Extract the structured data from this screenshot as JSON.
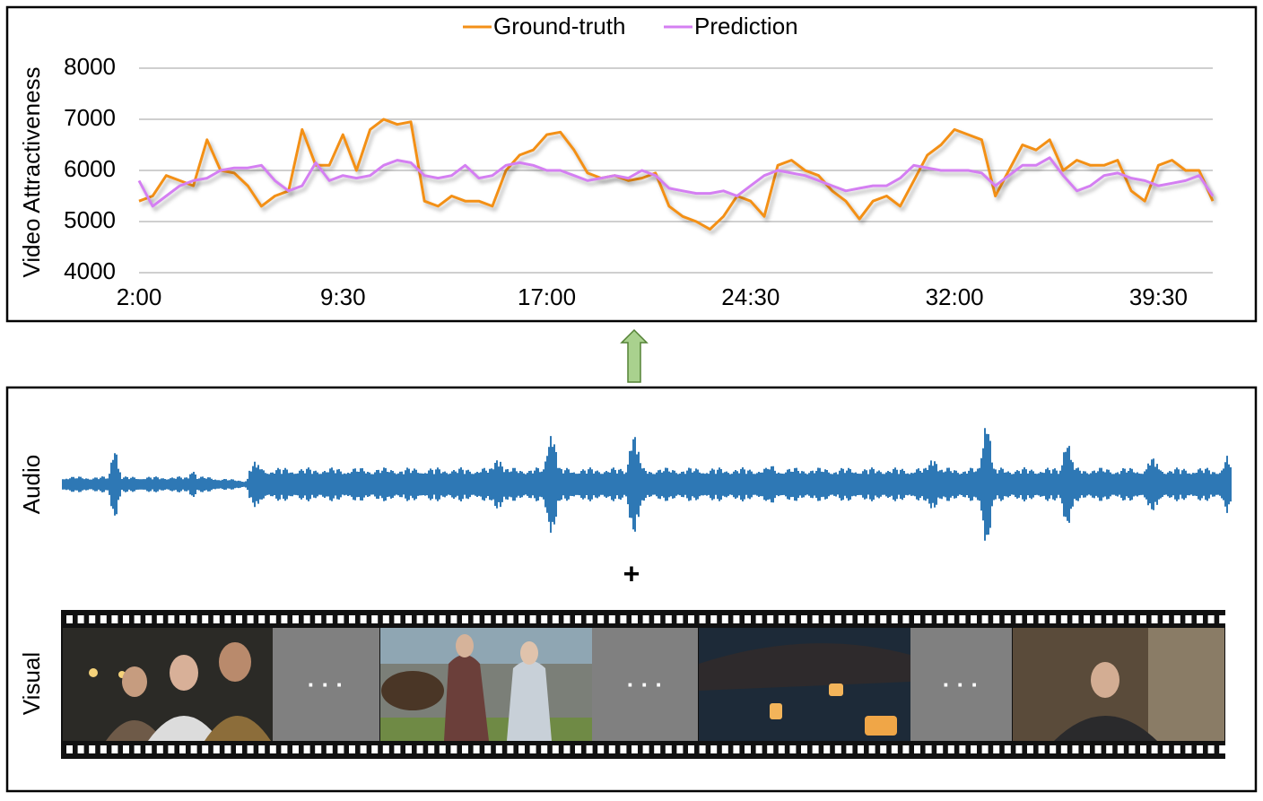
{
  "chart_data": {
    "type": "line",
    "y_label": "Video Attractiveness",
    "legend": "top",
    "grid": true,
    "x": [
      2,
      2.5,
      3,
      3.5,
      4,
      4.5,
      5,
      5.5,
      6,
      6.5,
      7,
      7.5,
      8,
      8.5,
      9,
      9.5,
      10,
      10.5,
      11,
      11.5,
      12,
      12.5,
      13,
      13.5,
      14,
      14.5,
      15,
      15.5,
      16,
      16.5,
      17,
      17.5,
      18,
      18.5,
      19,
      19.5,
      20,
      20.5,
      21,
      21.5,
      22,
      22.5,
      23,
      23.5,
      24,
      24.5,
      25,
      25.5,
      26,
      26.5,
      27,
      27.5,
      28,
      28.5,
      29,
      29.5,
      30,
      30.5,
      31,
      31.5,
      32,
      32.5,
      33,
      33.5,
      34,
      34.5,
      35,
      35.5,
      36,
      36.5,
      37,
      37.5,
      38,
      38.5,
      39,
      39.5,
      40,
      40.5,
      41,
      41.5
    ],
    "xlim": [
      2,
      41.5
    ],
    "xticks": [
      {
        "value": 2,
        "label": "2:00"
      },
      {
        "value": 9.5,
        "label": "9:30"
      },
      {
        "value": 17,
        "label": "17:00"
      },
      {
        "value": 24.5,
        "label": "24:30"
      },
      {
        "value": 32,
        "label": "32:00"
      },
      {
        "value": 39.5,
        "label": "39:30"
      }
    ],
    "ylim": [
      4000,
      8000
    ],
    "yticks": [
      4000,
      5000,
      6000,
      7000,
      8000
    ],
    "series": [
      {
        "name": "Ground-truth",
        "color": "#f39019",
        "values": [
          5400,
          5500,
          5900,
          5800,
          5700,
          6600,
          6000,
          5950,
          5700,
          5300,
          5500,
          5600,
          6800,
          6100,
          6100,
          6700,
          6000,
          6800,
          7000,
          6900,
          6950,
          5400,
          5300,
          5500,
          5400,
          5400,
          5300,
          6000,
          6300,
          6400,
          6700,
          6750,
          6400,
          5950,
          5850,
          5900,
          5800,
          5850,
          5950,
          5300,
          5100,
          5000,
          4850,
          5100,
          5500,
          5400,
          5100,
          6100,
          6200,
          6000,
          5900,
          5600,
          5400,
          5050,
          5400,
          5500,
          5300,
          5800,
          6300,
          6500,
          6800,
          6700,
          6600,
          5500,
          6000,
          6500,
          6400,
          6600,
          6000,
          6200,
          6100,
          6100,
          6200,
          5600,
          5400,
          6100,
          6200,
          6000,
          6000,
          5400
        ]
      },
      {
        "name": "Prediction",
        "color": "#d47ff2",
        "values": [
          5800,
          5300,
          5500,
          5700,
          5800,
          5850,
          6000,
          6050,
          6050,
          6100,
          5800,
          5600,
          5700,
          6150,
          5800,
          5900,
          5850,
          5900,
          6100,
          6200,
          6150,
          5900,
          5850,
          5900,
          6100,
          5850,
          5900,
          6100,
          6150,
          6100,
          6000,
          6000,
          5900,
          5800,
          5850,
          5900,
          5850,
          6000,
          5900,
          5650,
          5600,
          5550,
          5550,
          5600,
          5500,
          5700,
          5900,
          6000,
          5950,
          5900,
          5800,
          5700,
          5600,
          5650,
          5700,
          5700,
          5850,
          6100,
          6050,
          6000,
          6000,
          6000,
          5950,
          5700,
          5900,
          6100,
          6100,
          6250,
          5900,
          5600,
          5700,
          5900,
          5950,
          5850,
          5800,
          5700,
          5750,
          5800,
          5900,
          5500
        ]
      }
    ]
  },
  "diagram": {
    "audio_label": "Audio",
    "plus": "+",
    "visual_label": "Visual",
    "gaps": [
      "· · ·",
      "· · ·",
      "· · ·"
    ]
  }
}
